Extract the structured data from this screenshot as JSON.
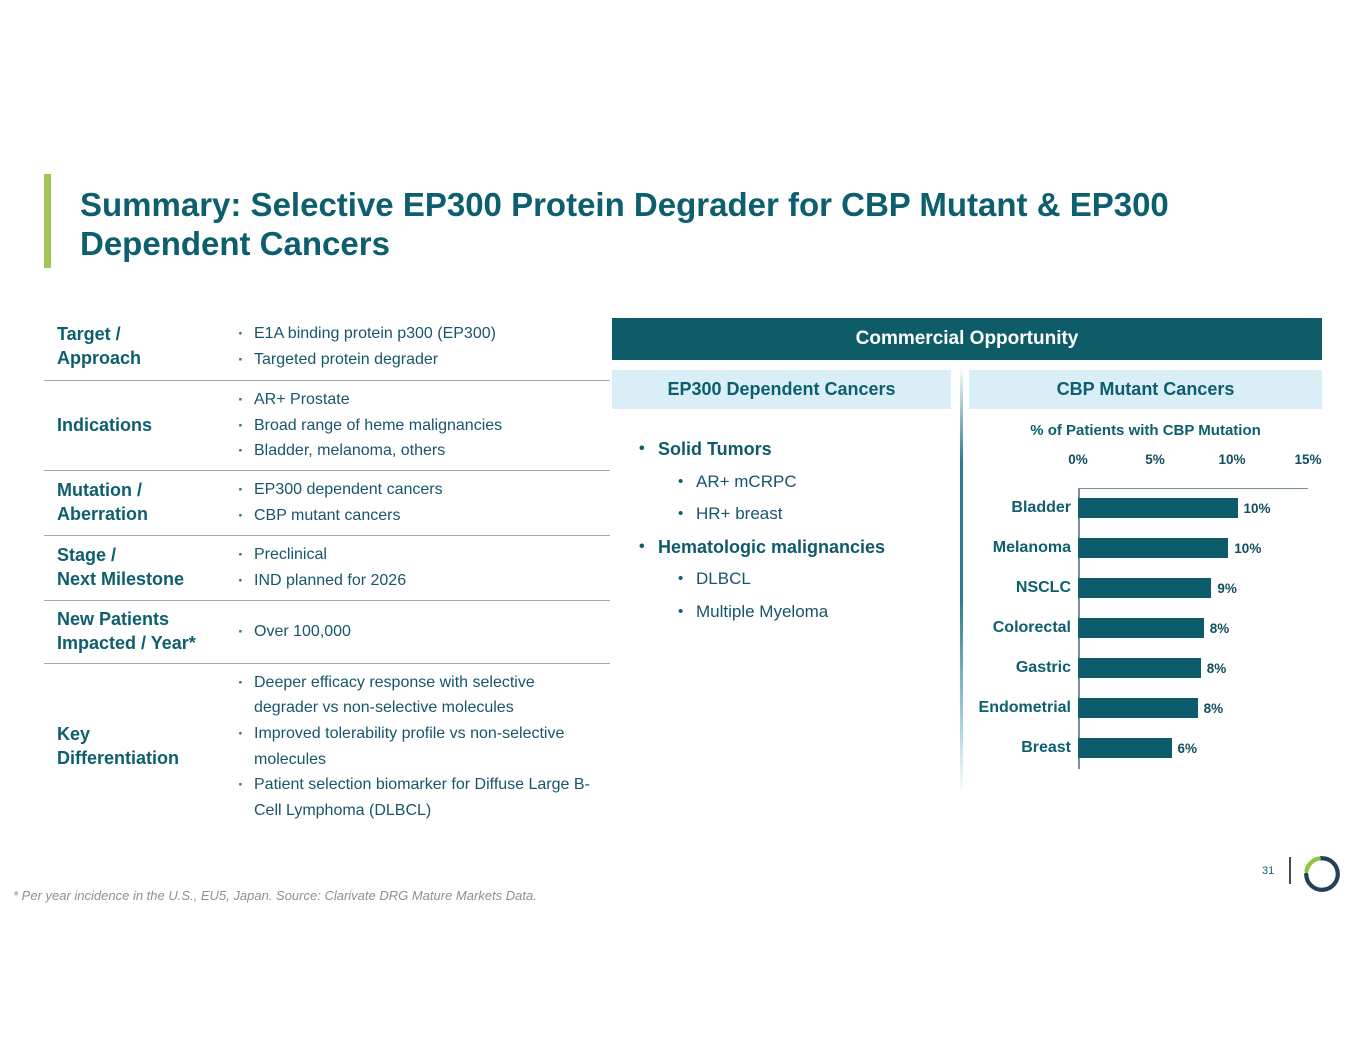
{
  "slide": {
    "title": "Summary: Selective EP300 Protein Degrader for CBP Mutant & EP300\nDependent Cancers",
    "footnote": "* Per year incidence in the U.S., EU5, Japan. Source: Clarivate DRG Mature Markets Data.",
    "page_number": "31"
  },
  "colors": {
    "teal_dark": "#0d5c68",
    "teal_text": "#0d5e6e",
    "light_blue": "#daeef7",
    "accent_green": "#a1c654",
    "logo_navy": "#263e57",
    "logo_green": "#8dc63f"
  },
  "profile_table": {
    "rows": [
      {
        "label": "Target /\nApproach",
        "bullets": [
          "E1A binding protein p300 (EP300)",
          "Targeted protein degrader"
        ]
      },
      {
        "label": "Indications",
        "bullets": [
          "AR+ Prostate",
          "Broad range of heme malignancies",
          "Bladder, melanoma, others"
        ]
      },
      {
        "label": "Mutation /\nAberration",
        "bullets": [
          "EP300 dependent cancers",
          "CBP mutant cancers"
        ]
      },
      {
        "label": "Stage /\nNext Milestone",
        "bullets": [
          "Preclinical",
          "IND planned for 2026"
        ]
      },
      {
        "label": "New Patients\nImpacted / Year*",
        "bullets": [
          "Over 100,000"
        ]
      },
      {
        "label": "Key\nDifferentiation",
        "bullets": [
          "Deeper efficacy response with selective degrader vs non-selective molecules",
          "Improved tolerability profile vs non-selective molecules",
          "Patient selection biomarker for Diffuse Large B-Cell Lymphoma (DLBCL)"
        ]
      }
    ]
  },
  "commercial": {
    "header": "Commercial Opportunity",
    "ep300_panel": {
      "title": "EP300 Dependent Cancers",
      "groups": [
        {
          "label": "Solid Tumors",
          "items": [
            "AR+ mCRPC",
            "HR+ breast"
          ]
        },
        {
          "label": "Hematologic malignancies",
          "items": [
            "DLBCL",
            "Multiple Myeloma"
          ]
        }
      ]
    },
    "cbp_panel": {
      "title": "CBP Mutant Cancers"
    }
  },
  "chart_data": {
    "type": "bar",
    "orientation": "horizontal",
    "title": "% of Patients with CBP Mutation",
    "categories": [
      "Bladder",
      "Melanoma",
      "NSCLC",
      "Colorectal",
      "Gastric",
      "Endometrial",
      "Breast"
    ],
    "values": [
      10.4,
      9.8,
      8.7,
      8.2,
      8.0,
      7.8,
      6.1
    ],
    "labels": [
      "10%",
      "10%",
      "9%",
      "8%",
      "8%",
      "8%",
      "6%"
    ],
    "x_ticks": [
      "0%",
      "5%",
      "10%",
      "15%"
    ],
    "xlim": [
      0,
      15
    ],
    "axis_position": "top",
    "grid": false,
    "bar_color": "#0d5c6b"
  }
}
